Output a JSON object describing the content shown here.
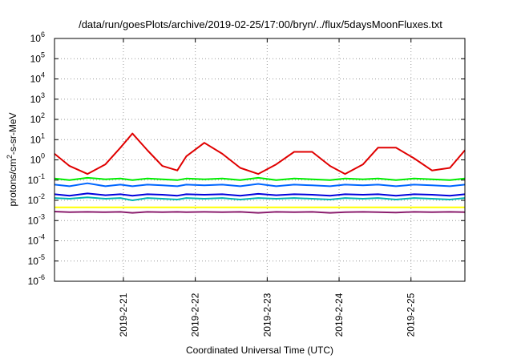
{
  "chart_data": {
    "type": "line",
    "title": "/data/run/goesPlots/archive/2019-02-25/17:00/bryn/../flux/5daysMoonFluxes.txt",
    "xlabel": "Coordinated Universal Time (UTC)",
    "ylabel": {
      "prefix": "protons/cm",
      "sup": "2",
      "suffix": "-s-sr-MeV"
    },
    "yscale": "log",
    "ylim": [
      1e-06,
      1000000.0
    ],
    "yticks": [
      {
        "value": 1000000.0,
        "base": "10",
        "exp": "6"
      },
      {
        "value": 100000.0,
        "base": "10",
        "exp": "5"
      },
      {
        "value": 10000.0,
        "base": "10",
        "exp": "4"
      },
      {
        "value": 1000.0,
        "base": "10",
        "exp": "3"
      },
      {
        "value": 100.0,
        "base": "10",
        "exp": "2"
      },
      {
        "value": 10.0,
        "base": "10",
        "exp": "1"
      },
      {
        "value": 1.0,
        "base": "10",
        "exp": "0"
      },
      {
        "value": 0.1,
        "base": "10",
        "exp": "-1"
      },
      {
        "value": 0.01,
        "base": "10",
        "exp": "-2"
      },
      {
        "value": 0.001,
        "base": "10",
        "exp": "-3"
      },
      {
        "value": 0.0001,
        "base": "10",
        "exp": "-4"
      },
      {
        "value": 1e-05,
        "base": "10",
        "exp": "-5"
      },
      {
        "value": 1e-06,
        "base": "10",
        "exp": "-6"
      }
    ],
    "xlim": [
      "2019-02-20 01:00",
      "2019-02-25 18:00"
    ],
    "xticks": [
      "2019-2-21",
      "2019-2-22",
      "2019-2-23",
      "2019-2-24",
      "2019-2-25"
    ],
    "grid": true,
    "x": [
      "2019-02-20 01:00",
      "2019-02-20 06:00",
      "2019-02-20 12:00",
      "2019-02-20 18:00",
      "2019-02-20 23:00",
      "2019-02-21 03:00",
      "2019-02-21 08:00",
      "2019-02-21 13:00",
      "2019-02-21 18:00",
      "2019-02-21 21:00",
      "2019-02-22 03:00",
      "2019-02-22 09:00",
      "2019-02-22 15:00",
      "2019-02-22 21:00",
      "2019-02-23 03:00",
      "2019-02-23 09:00",
      "2019-02-23 15:00",
      "2019-02-23 21:00",
      "2019-02-24 02:00",
      "2019-02-24 08:00",
      "2019-02-24 13:00",
      "2019-02-24 19:00",
      "2019-02-25 01:00",
      "2019-02-25 07:00",
      "2019-02-25 13:00",
      "2019-02-25 18:00"
    ],
    "series": [
      {
        "color": "#e00000",
        "values": [
          2,
          0.5,
          0.2,
          0.6,
          4,
          20,
          3,
          0.5,
          0.3,
          1.5,
          7,
          2,
          0.4,
          0.2,
          0.6,
          2.5,
          2.5,
          0.5,
          0.2,
          0.6,
          4,
          4,
          1.2,
          0.3,
          0.4,
          3
        ]
      },
      {
        "color": "#00ee00",
        "values": [
          0.12,
          0.1,
          0.13,
          0.11,
          0.12,
          0.1,
          0.12,
          0.11,
          0.1,
          0.12,
          0.11,
          0.12,
          0.1,
          0.13,
          0.1,
          0.12,
          0.11,
          0.1,
          0.12,
          0.11,
          0.12,
          0.1,
          0.12,
          0.11,
          0.1,
          0.12
        ]
      },
      {
        "color": "#0066ff",
        "values": [
          0.06,
          0.05,
          0.07,
          0.05,
          0.06,
          0.05,
          0.06,
          0.055,
          0.05,
          0.06,
          0.055,
          0.06,
          0.05,
          0.065,
          0.05,
          0.06,
          0.055,
          0.05,
          0.06,
          0.055,
          0.06,
          0.05,
          0.06,
          0.055,
          0.05,
          0.06
        ]
      },
      {
        "color": "#00b4b4",
        "values": [
          0.013,
          0.012,
          0.014,
          0.012,
          0.013,
          0.01,
          0.013,
          0.012,
          0.011,
          0.013,
          0.012,
          0.013,
          0.011,
          0.013,
          0.012,
          0.013,
          0.012,
          0.011,
          0.013,
          0.012,
          0.013,
          0.011,
          0.013,
          0.012,
          0.011,
          0.013
        ]
      },
      {
        "color": "#0000dd",
        "values": [
          0.02,
          0.017,
          0.022,
          0.018,
          0.02,
          0.017,
          0.02,
          0.019,
          0.017,
          0.02,
          0.019,
          0.02,
          0.017,
          0.021,
          0.018,
          0.02,
          0.019,
          0.017,
          0.02,
          0.019,
          0.02,
          0.017,
          0.02,
          0.019,
          0.017,
          0.02
        ]
      },
      {
        "color": "#ffff00",
        "values": [
          0.0045,
          0.0045,
          0.0045,
          0.0045,
          0.0045,
          0.0045,
          0.0045,
          0.0045,
          0.0045,
          0.0045,
          0.0045,
          0.0045,
          0.0045,
          0.0045,
          0.0045,
          0.0045,
          0.0045,
          0.0045,
          0.0045,
          0.0045,
          0.0045,
          0.0045,
          0.0045,
          0.0045,
          0.0045,
          0.0045
        ]
      },
      {
        "color": "#8b1e6e",
        "values": [
          0.0028,
          0.0026,
          0.0027,
          0.0026,
          0.0027,
          0.0024,
          0.0027,
          0.0026,
          0.0027,
          0.0026,
          0.0027,
          0.0026,
          0.0027,
          0.0024,
          0.0027,
          0.0026,
          0.0027,
          0.0024,
          0.0026,
          0.0027,
          0.0026,
          0.0025,
          0.0027,
          0.0026,
          0.0027,
          0.0026
        ]
      }
    ]
  }
}
